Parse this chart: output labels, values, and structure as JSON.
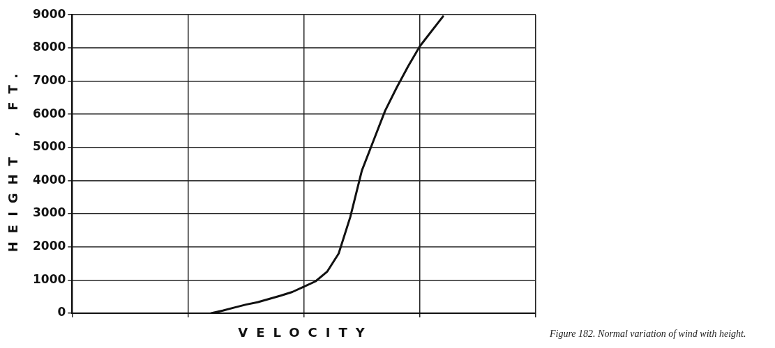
{
  "chart_data": {
    "type": "line",
    "xlabel": "VELOCITY",
    "ylabel": "HEIGHT , FT.",
    "annotations": [
      "Figure 182. Normal variation of wind with height."
    ],
    "categories": [
      null,
      null,
      null,
      null,
      null,
      null,
      null,
      null,
      null,
      null,
      null,
      null,
      null,
      null,
      null,
      null,
      null,
      null,
      null,
      null,
      null,
      null,
      null,
      null,
      null,
      null,
      null,
      null,
      null,
      null,
      null,
      null,
      null,
      null,
      null,
      null,
      null,
      null,
      null,
      null,
      null
    ],
    "series": [
      {
        "color": "#111111",
        "values": [
          null,
          null,
          null,
          null,
          null,
          null,
          null,
          null,
          null,
          null,
          null,
          null,
          0,
          80,
          170,
          260,
          330,
          430,
          530,
          640,
          800,
          960,
          1250,
          1800,
          2900,
          4300,
          5200,
          6100,
          6800,
          7450,
          8050,
          8500,
          8950,
          null,
          null,
          null,
          null,
          null,
          null,
          null,
          null
        ]
      }
    ],
    "ylim": [
      0,
      9000
    ],
    "yticks": [
      0,
      1000,
      2000,
      3000,
      4000,
      5000,
      6000,
      7000,
      8000,
      9000
    ],
    "tick_labels": "y",
    "grid": true,
    "legend": false,
    "marker": "none",
    "line_style": "solid"
  }
}
